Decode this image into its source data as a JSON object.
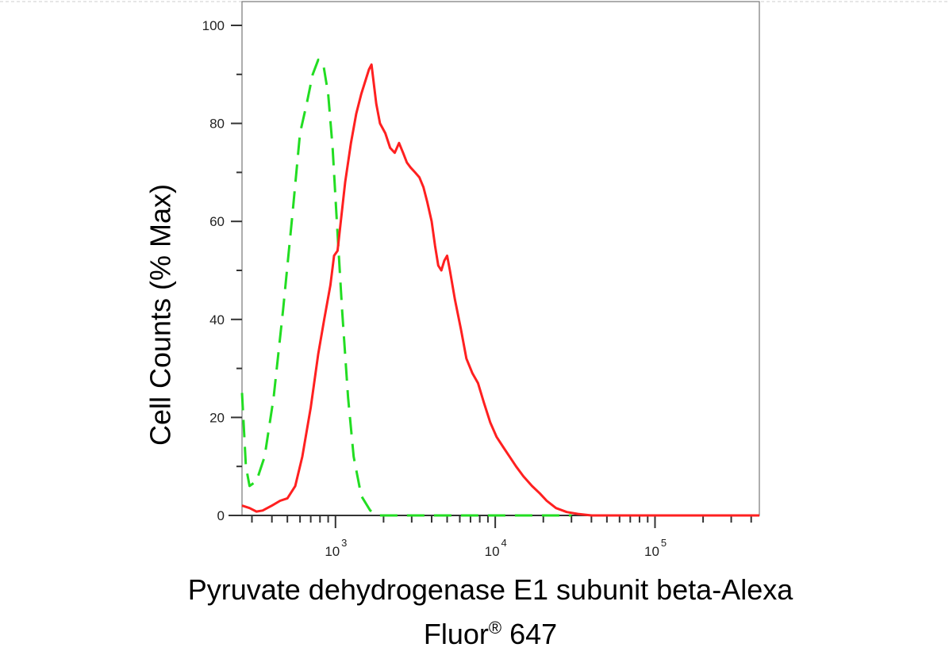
{
  "chart_data": {
    "type": "line",
    "title": "",
    "xlabel": "Pyruvate dehydrogenase E1 subunit beta-Alexa",
    "xlabel_line2_pre": "Fluor",
    "xlabel_line2_sup": "®",
    "xlabel_line2_post": " 647",
    "ylabel": "Cell Counts (% Max)",
    "x_scale": "log",
    "xlim": [
      260,
      450000
    ],
    "ylim": [
      0,
      100
    ],
    "y_ticks": [
      "0",
      "20",
      "40",
      "60",
      "80",
      "100"
    ],
    "x_tick_base": "10",
    "x_ticks": [
      {
        "value": 1000,
        "exp": "3"
      },
      {
        "value": 10000,
        "exp": "4"
      },
      {
        "value": 100000,
        "exp": "5"
      }
    ],
    "grid": false,
    "series": [
      {
        "color": "#22dd22",
        "dash": "dashed",
        "points": [
          [
            260,
            25
          ],
          [
            275,
            10
          ],
          [
            290,
            6
          ],
          [
            320,
            7
          ],
          [
            360,
            12
          ],
          [
            410,
            24
          ],
          [
            470,
            42
          ],
          [
            540,
            62
          ],
          [
            600,
            78
          ],
          [
            660,
            84
          ],
          [
            720,
            90
          ],
          [
            780,
            93
          ],
          [
            840,
            92
          ],
          [
            900,
            86
          ],
          [
            960,
            75
          ],
          [
            1020,
            60
          ],
          [
            1100,
            42
          ],
          [
            1200,
            24
          ],
          [
            1300,
            12
          ],
          [
            1450,
            4
          ],
          [
            1650,
            1
          ],
          [
            1900,
            0
          ],
          [
            3000,
            0
          ],
          [
            10000,
            0
          ],
          [
            30000,
            0
          ]
        ]
      },
      {
        "color": "#ff2020",
        "dash": "solid",
        "points": [
          [
            260,
            2
          ],
          [
            290,
            1.5
          ],
          [
            320,
            0.8
          ],
          [
            350,
            1
          ],
          [
            400,
            2
          ],
          [
            450,
            3
          ],
          [
            500,
            3.5
          ],
          [
            560,
            6
          ],
          [
            620,
            12
          ],
          [
            700,
            22
          ],
          [
            780,
            33
          ],
          [
            850,
            40
          ],
          [
            930,
            47
          ],
          [
            980,
            53
          ],
          [
            1030,
            54
          ],
          [
            1080,
            60
          ],
          [
            1150,
            68
          ],
          [
            1250,
            76
          ],
          [
            1350,
            82
          ],
          [
            1450,
            86
          ],
          [
            1550,
            89
          ],
          [
            1620,
            91
          ],
          [
            1680,
            92
          ],
          [
            1740,
            88
          ],
          [
            1800,
            84
          ],
          [
            1900,
            80
          ],
          [
            2050,
            78
          ],
          [
            2200,
            75
          ],
          [
            2350,
            74
          ],
          [
            2500,
            76
          ],
          [
            2650,
            74
          ],
          [
            2800,
            72
          ],
          [
            2950,
            71
          ],
          [
            3150,
            70
          ],
          [
            3350,
            69
          ],
          [
            3550,
            67
          ],
          [
            3750,
            64
          ],
          [
            4000,
            60
          ],
          [
            4200,
            55
          ],
          [
            4400,
            51
          ],
          [
            4600,
            50
          ],
          [
            4800,
            52
          ],
          [
            5000,
            53
          ],
          [
            5200,
            50
          ],
          [
            5600,
            44
          ],
          [
            6100,
            38
          ],
          [
            6600,
            32
          ],
          [
            7200,
            29
          ],
          [
            7800,
            27
          ],
          [
            8500,
            23
          ],
          [
            9300,
            19
          ],
          [
            10200,
            16
          ],
          [
            11200,
            14
          ],
          [
            12300,
            12
          ],
          [
            13500,
            10
          ],
          [
            15000,
            8
          ],
          [
            17000,
            6
          ],
          [
            19000,
            4.5
          ],
          [
            21000,
            3
          ],
          [
            24000,
            1.5
          ],
          [
            28000,
            0.7
          ],
          [
            33000,
            0.3
          ],
          [
            40000,
            0
          ],
          [
            100000,
            0
          ],
          [
            450000,
            0
          ]
        ]
      }
    ]
  }
}
